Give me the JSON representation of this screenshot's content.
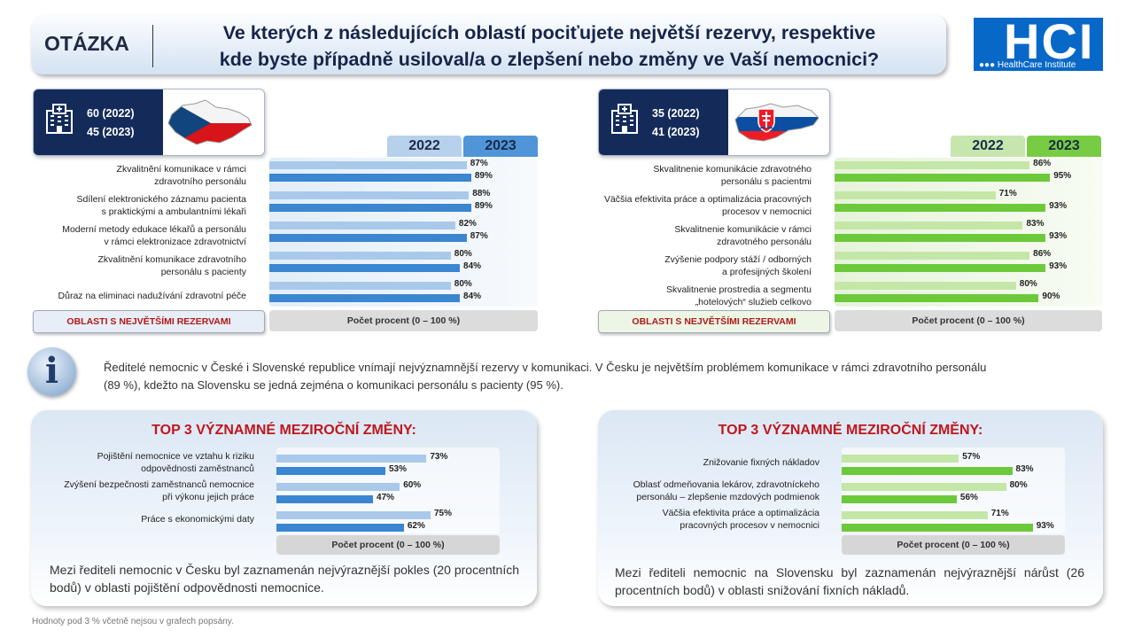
{
  "header": {
    "label": "OTÁZKA",
    "question_line1": "Ve kterých z následujících oblastí pociťujete největší rezervy, respektive",
    "question_line2": "kde byste případně usiloval/a o zlepšení nebo změny ve Vaší nemocnici?"
  },
  "logo": {
    "big": "HCI",
    "small": "●●● HealthCare Institute"
  },
  "cz": {
    "n_2022": "60 (2022)",
    "n_2023": "45 (2023)",
    "areas_label": "OBLASTI S NEJVĚTŠÍMI REZERVAMI",
    "axis_label": "Počet procent (0 – 100 %)"
  },
  "sk": {
    "n_2022": "35 (2022)",
    "n_2023": "41 (2023)",
    "areas_label": "OBLASTI S NEJVĚTŠÍMI REZERVAMI",
    "axis_label": "Počet procent (0 – 100 %)"
  },
  "info": {
    "icon": "i",
    "text_line1": "Ředitelé nemocnic v České i Slovenské republice vnímají nejvýznamnější rezervy v komunikaci. V Česku je největším problémem komunikace v rámci zdravotního personálu",
    "text_line2": "(89 %), kdežto na Slovensku se jedná zejména o komunikaci personálu s pacienty (95 %)."
  },
  "cz_changes": {
    "title": "TOP 3 VÝZNAMNÉ MEZIROČNÍ ZMĚNY:",
    "axis_label": "Počet procent (0 – 100 %)",
    "summary": "Mezi řediteli nemocnic v Česku byl zaznamenán nejvýraznější pokles (20 procentních bodů) v oblasti pojištění odpovědnosti nemocnice."
  },
  "sk_changes": {
    "title": "TOP 3 VÝZNAMNÉ MEZIROČNÍ ZMĚNY:",
    "axis_label": "Počet procent (0 – 100 %)",
    "summary": "Mezi řediteli nemocnic na Slovensku byl zaznamenán nejvýraznější nárůst (26 procentních bodů) v oblasti snižování fixních nákladů."
  },
  "footnote": "Hodnoty pod 3 % včetně nejsou v grafech popsány.",
  "colors": {
    "cz_2022": "#a9c9ea",
    "cz_2023": "#3a86d0",
    "sk_2022": "#c4e7a8",
    "sk_2023": "#6cc93a",
    "tab_cz_2022": "#b7d0ec",
    "tab_cz_2023": "#4f95d8",
    "tab_sk_2022": "#c6e6ae",
    "tab_sk_2023": "#78cc43"
  },
  "chart_data": [
    {
      "type": "bar",
      "id": "cz",
      "categories": [
        "Zkvalitnění komunikace v rámci\nzdravotního personálu",
        "Sdílení elektronického záznamu pacienta\ns praktickými a ambulantními lékaři",
        "Moderní metody edukace lékařů a personálu\nv rámci elektronizace zdravotnictví",
        "Zkvalitnění komunikace zdravotního\npersonálu s pacienty",
        "Důraz na eliminaci nadužívání zdravotní péče"
      ],
      "series": [
        {
          "name": "2022",
          "values": [
            87,
            88,
            82,
            80,
            80
          ]
        },
        {
          "name": "2023",
          "values": [
            89,
            89,
            87,
            84,
            84
          ]
        }
      ],
      "xlabel": "Počet procent (0 – 100 %)",
      "xlim": [
        0,
        100
      ]
    },
    {
      "type": "bar",
      "id": "sk",
      "categories": [
        "Skvalitnenie komunikácie zdravotného\npersonálu s pacientmi",
        "Väčšia efektivita práce a optimalizácia pracovných\nprocesov v nemocnici",
        "Skvalitnenie komunikácie v rámci\nzdravotného personálu",
        "Zvýšenie podpory stáží / odborných\na profesijných školení",
        "Skvalitnenie prostredia a segmentu\n„hotelových“ služieb celkovo"
      ],
      "series": [
        {
          "name": "2022",
          "values": [
            86,
            71,
            83,
            86,
            80
          ]
        },
        {
          "name": "2023",
          "values": [
            95,
            93,
            93,
            93,
            90
          ]
        }
      ],
      "xlabel": "Počet procent (0 – 100 %)",
      "xlim": [
        0,
        100
      ]
    },
    {
      "type": "bar",
      "id": "cz_changes",
      "categories": [
        "Pojištění nemocnice ve vztahu k riziku\nodpovědnosti zaměstnanců",
        "Zvýšení bezpečnosti zaměstnanců nemocnice\npři výkonu jejich práce",
        "Práce s ekonomickými daty"
      ],
      "series": [
        {
          "values": [
            73,
            60,
            75
          ]
        },
        {
          "values": [
            53,
            47,
            62
          ]
        }
      ],
      "xlabel": "Počet procent (0 – 100 %)",
      "xlim": [
        0,
        100
      ]
    },
    {
      "type": "bar",
      "id": "sk_changes",
      "categories": [
        "Znižovanie fixných nákladov",
        "Oblasť odmeňovania lekárov, zdravotníckeho\npersonálu – zlepšenie mzdových podmienok",
        "Väčšia efektivita práce a optimalizácia\npracovných procesov v nemocnici"
      ],
      "series": [
        {
          "values": [
            57,
            80,
            71
          ]
        },
        {
          "values": [
            83,
            56,
            93
          ]
        }
      ],
      "xlabel": "Počet procent (0 – 100 %)",
      "xlim": [
        0,
        100
      ]
    }
  ]
}
